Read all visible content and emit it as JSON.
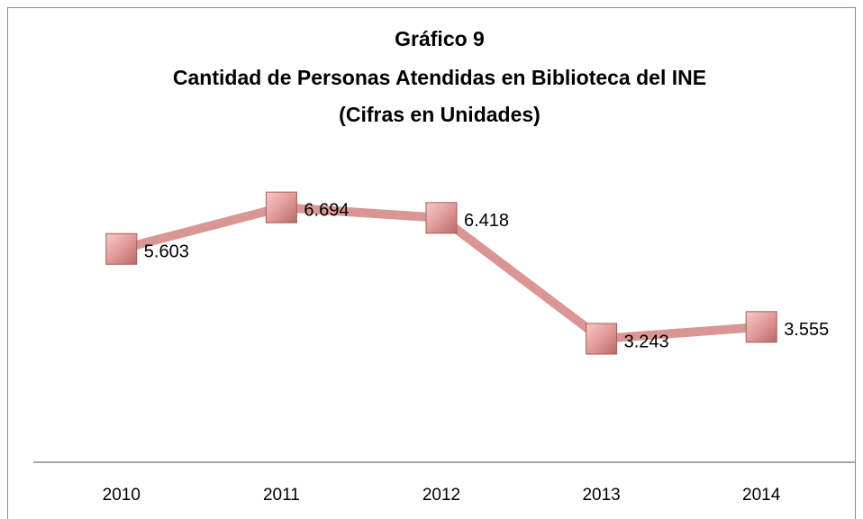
{
  "chart_data": {
    "type": "line",
    "title": [
      "Gráfico 9",
      "Cantidad de Personas Atendidas en Biblioteca del INE",
      "(Cifras en Unidades)"
    ],
    "categories": [
      "2010",
      "2011",
      "2012",
      "2013",
      "2014"
    ],
    "values": [
      5603,
      6694,
      6418,
      3243,
      3555
    ],
    "value_labels": [
      "5.603",
      "6.694",
      "6.418",
      "3.243",
      "3.555"
    ],
    "color": "#d99694",
    "ylim": [
      0,
      8000
    ]
  }
}
